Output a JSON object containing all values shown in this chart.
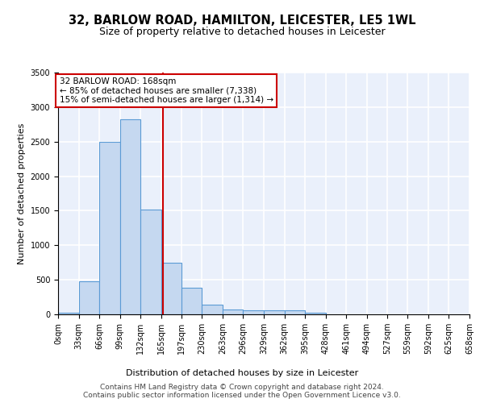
{
  "title1": "32, BARLOW ROAD, HAMILTON, LEICESTER, LE5 1WL",
  "title2": "Size of property relative to detached houses in Leicester",
  "xlabel": "Distribution of detached houses by size in Leicester",
  "ylabel": "Number of detached properties",
  "bar_color": "#c5d8f0",
  "bar_edge_color": "#5b9bd5",
  "background_color": "#eaf0fb",
  "grid_color": "#ffffff",
  "annotation_line_color": "#cc0000",
  "annotation_text_line1": "32 BARLOW ROAD: 168sqm",
  "annotation_text_line2": "← 85% of detached houses are smaller (7,338)",
  "annotation_text_line3": "15% of semi-detached houses are larger (1,314) →",
  "property_size": 168,
  "bin_edges": [
    0,
    33,
    66,
    99,
    132,
    165,
    197,
    230,
    263,
    296,
    329,
    362,
    395,
    428,
    461,
    494,
    527,
    559,
    592,
    625,
    658
  ],
  "bar_heights": [
    20,
    480,
    2500,
    2820,
    1520,
    750,
    380,
    140,
    75,
    55,
    55,
    55,
    20,
    0,
    0,
    0,
    0,
    0,
    0,
    0
  ],
  "ylim": [
    0,
    3500
  ],
  "yticks": [
    0,
    500,
    1000,
    1500,
    2000,
    2500,
    3000,
    3500
  ],
  "footer_line1": "Contains HM Land Registry data © Crown copyright and database right 2024.",
  "footer_line2": "Contains public sector information licensed under the Open Government Licence v3.0.",
  "title1_fontsize": 10.5,
  "title2_fontsize": 9,
  "axis_label_fontsize": 8,
  "tick_fontsize": 7,
  "footer_fontsize": 6.5,
  "annotation_fontsize": 7.5
}
